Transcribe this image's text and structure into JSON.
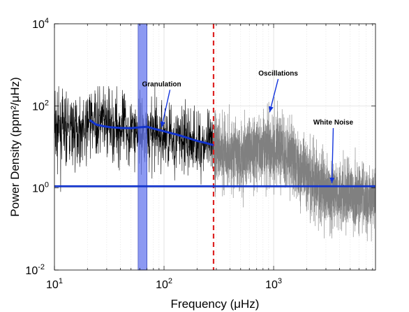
{
  "chart_data": {
    "type": "line",
    "title": "",
    "xlabel": "Frequency (μHz)",
    "ylabel": "Power Density (ppm²/μHz)",
    "xscale": "log",
    "yscale": "log",
    "xlim": [
      10,
      8500
    ],
    "ylim": [
      0.01,
      10000
    ],
    "grid": true,
    "x_ticks": [
      {
        "value": 10,
        "base": "10",
        "exp": "1"
      },
      {
        "value": 100,
        "base": "10",
        "exp": "2"
      },
      {
        "value": 1000,
        "base": "10",
        "exp": "3"
      }
    ],
    "y_ticks": [
      {
        "value": 0.01,
        "base": "10",
        "exp": "-2"
      },
      {
        "value": 1,
        "base": "10",
        "exp": "0"
      },
      {
        "value": 100,
        "base": "10",
        "exp": "2"
      },
      {
        "value": 10000,
        "base": "10",
        "exp": "4"
      }
    ],
    "highlight_band": {
      "x": [
        58,
        70
      ],
      "color": "#6677ee"
    },
    "vline": {
      "x": 283,
      "color": "#dd2222"
    },
    "series": [
      {
        "role": "power-spectrum-low",
        "color": "#000000",
        "x_range": [
          10,
          283
        ]
      },
      {
        "role": "power-spectrum-high",
        "color": "#808080",
        "x_range": [
          283,
          8500
        ]
      },
      {
        "role": "granulation-trend",
        "color": "#1133cc",
        "x": [
          21,
          24,
          28,
          33,
          40,
          50,
          60,
          70,
          80,
          100,
          130,
          160,
          200,
          240,
          283
        ],
        "y": [
          45,
          35,
          32,
          30,
          29,
          28.5,
          30,
          31,
          28,
          24,
          20,
          17,
          14,
          12.5,
          11
        ]
      },
      {
        "role": "white-noise-level",
        "color": "#1133cc",
        "y": 1.1
      }
    ],
    "annotations": [
      {
        "text": "Granulation",
        "at": [
          95,
          300
        ],
        "arrow_to": [
          95,
          30
        ]
      },
      {
        "text": "Oscillations",
        "at": [
          1100,
          550
        ],
        "arrow_to": [
          920,
          70
        ]
      },
      {
        "text": "White Noise",
        "at": [
          3500,
          35
        ],
        "arrow_to": [
          3400,
          1.3
        ]
      }
    ]
  }
}
